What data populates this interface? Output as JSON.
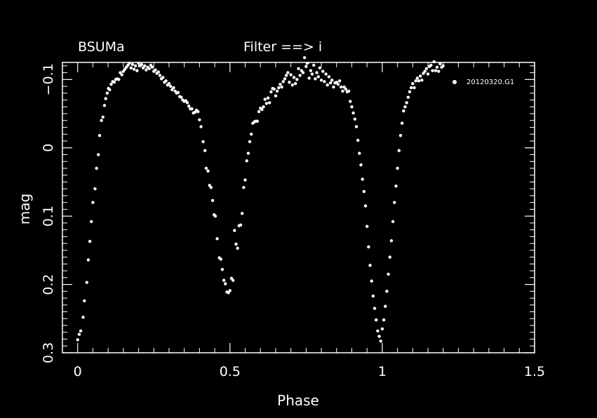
{
  "page": {
    "background": "#000000",
    "foreground": "#ffffff"
  },
  "header": {
    "object": "BSUMa",
    "filter": "Filter ==> i"
  },
  "chart_data": {
    "type": "scatter",
    "title": "",
    "xlabel": "Phase",
    "ylabel": "mag",
    "xlim": [
      -0.05,
      1.5
    ],
    "ylim": [
      0.3,
      -0.125
    ],
    "y_inverted": true,
    "x_ticks": [
      0,
      0.5,
      1,
      1.5
    ],
    "x_tick_labels": [
      "0",
      "0.5",
      "1",
      "1.5"
    ],
    "y_ticks": [
      -0.1,
      0,
      0.1,
      0.2,
      0.3
    ],
    "y_tick_labels": [
      "−0.1",
      "0",
      "0.1",
      "0.2",
      "0.3"
    ],
    "grid": false,
    "legend": {
      "placement": "top-right",
      "marker": "filled-circle"
    },
    "series": [
      {
        "name": "20120320.G1",
        "color": "#ffffff",
        "points": [
          [
            0.0,
            0.281
          ],
          [
            0.005,
            0.273
          ],
          [
            0.01,
            0.268
          ],
          [
            0.018,
            0.248
          ],
          [
            0.022,
            0.224
          ],
          [
            0.03,
            0.197
          ],
          [
            0.035,
            0.164
          ],
          [
            0.04,
            0.137
          ],
          [
            0.045,
            0.108
          ],
          [
            0.05,
            0.08
          ],
          [
            0.057,
            0.06
          ],
          [
            0.062,
            0.03
          ],
          [
            0.068,
            0.01
          ],
          [
            0.072,
            -0.018
          ],
          [
            0.078,
            -0.04
          ],
          [
            0.083,
            -0.045
          ],
          [
            0.088,
            -0.062
          ],
          [
            0.092,
            -0.072
          ],
          [
            0.097,
            -0.08
          ],
          [
            0.101,
            -0.087
          ],
          [
            0.105,
            -0.085
          ],
          [
            0.11,
            -0.093
          ],
          [
            0.115,
            -0.097
          ],
          [
            0.12,
            -0.096
          ],
          [
            0.125,
            -0.1
          ],
          [
            0.13,
            -0.101
          ],
          [
            0.135,
            -0.1
          ],
          [
            0.14,
            -0.11
          ],
          [
            0.145,
            -0.107
          ],
          [
            0.15,
            -0.112
          ],
          [
            0.155,
            -0.115
          ],
          [
            0.16,
            -0.118
          ],
          [
            0.165,
            -0.121
          ],
          [
            0.17,
            -0.124
          ],
          [
            0.175,
            -0.117
          ],
          [
            0.18,
            -0.122
          ],
          [
            0.185,
            -0.115
          ],
          [
            0.19,
            -0.12
          ],
          [
            0.195,
            -0.113
          ],
          [
            0.2,
            -0.124
          ],
          [
            0.205,
            -0.12
          ],
          [
            0.21,
            -0.122
          ],
          [
            0.215,
            -0.117
          ],
          [
            0.22,
            -0.12
          ],
          [
            0.225,
            -0.114
          ],
          [
            0.23,
            -0.118
          ],
          [
            0.235,
            -0.116
          ],
          [
            0.24,
            -0.121
          ],
          [
            0.245,
            -0.118
          ],
          [
            0.25,
            -0.112
          ],
          [
            0.255,
            -0.114
          ],
          [
            0.26,
            -0.109
          ],
          [
            0.265,
            -0.111
          ],
          [
            0.27,
            -0.106
          ],
          [
            0.275,
            -0.101
          ],
          [
            0.28,
            -0.103
          ],
          [
            0.285,
            -0.096
          ],
          [
            0.29,
            -0.098
          ],
          [
            0.295,
            -0.092
          ],
          [
            0.3,
            -0.094
          ],
          [
            0.305,
            -0.09
          ],
          [
            0.31,
            -0.085
          ],
          [
            0.315,
            -0.088
          ],
          [
            0.32,
            -0.083
          ],
          [
            0.325,
            -0.08
          ],
          [
            0.33,
            -0.081
          ],
          [
            0.335,
            -0.075
          ],
          [
            0.34,
            -0.074
          ],
          [
            0.345,
            -0.07
          ],
          [
            0.35,
            -0.068
          ],
          [
            0.355,
            -0.069
          ],
          [
            0.36,
            -0.066
          ],
          [
            0.365,
            -0.061
          ],
          [
            0.37,
            -0.057
          ],
          [
            0.375,
            -0.057
          ],
          [
            0.38,
            -0.051
          ],
          [
            0.385,
            -0.052
          ],
          [
            0.39,
            -0.055
          ],
          [
            0.395,
            -0.053
          ],
          [
            0.4,
            -0.041
          ],
          [
            0.405,
            -0.031
          ],
          [
            0.412,
            -0.009
          ],
          [
            0.418,
            0.004
          ],
          [
            0.422,
            0.03
          ],
          [
            0.428,
            0.034
          ],
          [
            0.433,
            0.055
          ],
          [
            0.438,
            0.058
          ],
          [
            0.443,
            0.077
          ],
          [
            0.448,
            0.098
          ],
          [
            0.452,
            0.1
          ],
          [
            0.458,
            0.133
          ],
          [
            0.465,
            0.161
          ],
          [
            0.47,
            0.163
          ],
          [
            0.475,
            0.178
          ],
          [
            0.48,
            0.194
          ],
          [
            0.485,
            0.199
          ],
          [
            0.49,
            0.211
          ],
          [
            0.495,
            0.212
          ],
          [
            0.5,
            0.209
          ],
          [
            0.505,
            0.191
          ],
          [
            0.51,
            0.194
          ],
          [
            0.515,
            0.121
          ],
          [
            0.52,
            0.141
          ],
          [
            0.525,
            0.147
          ],
          [
            0.53,
            0.114
          ],
          [
            0.535,
            0.113
          ],
          [
            0.54,
            0.096
          ],
          [
            0.545,
            0.058
          ],
          [
            0.55,
            0.047
          ],
          [
            0.555,
            0.019
          ],
          [
            0.56,
            0.008
          ],
          [
            0.565,
            -0.009
          ],
          [
            0.57,
            -0.02
          ],
          [
            0.575,
            -0.036
          ],
          [
            0.58,
            -0.038
          ],
          [
            0.585,
            -0.039
          ],
          [
            0.59,
            -0.039
          ],
          [
            0.595,
            -0.053
          ],
          [
            0.6,
            -0.058
          ],
          [
            0.605,
            -0.056
          ],
          [
            0.61,
            -0.06
          ],
          [
            0.615,
            -0.071
          ],
          [
            0.62,
            -0.065
          ],
          [
            0.625,
            -0.073
          ],
          [
            0.63,
            -0.066
          ],
          [
            0.635,
            -0.082
          ],
          [
            0.64,
            -0.087
          ],
          [
            0.645,
            -0.086
          ],
          [
            0.65,
            -0.076
          ],
          [
            0.655,
            -0.083
          ],
          [
            0.66,
            -0.088
          ],
          [
            0.665,
            -0.093
          ],
          [
            0.67,
            -0.089
          ],
          [
            0.675,
            -0.097
          ],
          [
            0.68,
            -0.101
          ],
          [
            0.685,
            -0.106
          ],
          [
            0.69,
            -0.11
          ],
          [
            0.695,
            -0.096
          ],
          [
            0.7,
            -0.107
          ],
          [
            0.705,
            -0.092
          ],
          [
            0.71,
            -0.103
          ],
          [
            0.715,
            -0.094
          ],
          [
            0.72,
            -0.1
          ],
          [
            0.725,
            -0.116
          ],
          [
            0.73,
            -0.106
          ],
          [
            0.735,
            -0.113
          ],
          [
            0.74,
            -0.11
          ],
          [
            0.745,
            -0.132
          ],
          [
            0.75,
            -0.119
          ],
          [
            0.755,
            -0.124
          ],
          [
            0.76,
            -0.102
          ],
          [
            0.765,
            -0.113
          ],
          [
            0.77,
            -0.108
          ],
          [
            0.775,
            -0.121
          ],
          [
            0.78,
            -0.101
          ],
          [
            0.785,
            -0.11
          ],
          [
            0.79,
            -0.104
          ],
          [
            0.795,
            -0.117
          ],
          [
            0.8,
            -0.099
          ],
          [
            0.805,
            -0.112
          ],
          [
            0.81,
            -0.097
          ],
          [
            0.815,
            -0.108
          ],
          [
            0.82,
            -0.092
          ],
          [
            0.825,
            -0.104
          ],
          [
            0.83,
            -0.095
          ],
          [
            0.835,
            -0.099
          ],
          [
            0.84,
            -0.089
          ],
          [
            0.845,
            -0.095
          ],
          [
            0.85,
            -0.096
          ],
          [
            0.855,
            -0.093
          ],
          [
            0.86,
            -0.098
          ],
          [
            0.865,
            -0.089
          ],
          [
            0.87,
            -0.083
          ],
          [
            0.875,
            -0.089
          ],
          [
            0.88,
            -0.086
          ],
          [
            0.885,
            -0.082
          ],
          [
            0.89,
            -0.083
          ],
          [
            0.895,
            -0.068
          ],
          [
            0.9,
            -0.06
          ],
          [
            0.905,
            -0.051
          ],
          [
            0.91,
            -0.042
          ],
          [
            0.915,
            -0.031
          ],
          [
            0.92,
            -0.011
          ],
          [
            0.925,
            0.008
          ],
          [
            0.93,
            0.025
          ],
          [
            0.935,
            0.046
          ],
          [
            0.94,
            0.064
          ],
          [
            0.945,
            0.085
          ],
          [
            0.95,
            0.115
          ],
          [
            0.955,
            0.145
          ],
          [
            0.96,
            0.172
          ],
          [
            0.965,
            0.195
          ],
          [
            0.97,
            0.217
          ],
          [
            0.975,
            0.235
          ],
          [
            0.98,
            0.252
          ],
          [
            0.985,
            0.268
          ],
          [
            0.99,
            0.276
          ],
          [
            0.995,
            0.283
          ],
          [
            1.0,
            0.265
          ],
          [
            1.005,
            0.252
          ],
          [
            1.01,
            0.232
          ],
          [
            1.015,
            0.21
          ],
          [
            1.02,
            0.185
          ],
          [
            1.025,
            0.16
          ],
          [
            1.03,
            0.136
          ],
          [
            1.035,
            0.108
          ],
          [
            1.04,
            0.08
          ],
          [
            1.045,
            0.056
          ],
          [
            1.05,
            0.03
          ],
          [
            1.055,
            0.004
          ],
          [
            1.06,
            -0.018
          ],
          [
            1.065,
            -0.036
          ],
          [
            1.07,
            -0.054
          ],
          [
            1.075,
            -0.06
          ],
          [
            1.08,
            -0.066
          ],
          [
            1.085,
            -0.074
          ],
          [
            1.09,
            -0.082
          ],
          [
            1.095,
            -0.088
          ],
          [
            1.1,
            -0.094
          ],
          [
            1.105,
            -0.088
          ],
          [
            1.11,
            -0.098
          ],
          [
            1.115,
            -0.102
          ],
          [
            1.12,
            -0.098
          ],
          [
            1.125,
            -0.105
          ],
          [
            1.13,
            -0.099
          ],
          [
            1.135,
            -0.109
          ],
          [
            1.14,
            -0.112
          ],
          [
            1.145,
            -0.116
          ],
          [
            1.15,
            -0.108
          ],
          [
            1.155,
            -0.119
          ],
          [
            1.16,
            -0.121
          ],
          [
            1.165,
            -0.113
          ],
          [
            1.17,
            -0.126
          ],
          [
            1.175,
            -0.113
          ],
          [
            1.18,
            -0.118
          ],
          [
            1.185,
            -0.112
          ],
          [
            1.19,
            -0.123
          ],
          [
            1.195,
            -0.118
          ],
          [
            1.2,
            -0.12
          ]
        ]
      }
    ]
  }
}
